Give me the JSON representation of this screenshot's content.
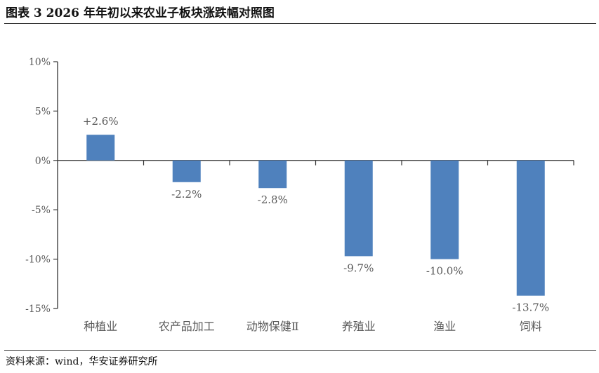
{
  "header": {
    "title": "图表 3 2026 年年初以来农业子板块涨跌幅对照图"
  },
  "footer": {
    "source": "资料来源：wind，华安证券研究所"
  },
  "colors": {
    "bar": "#4F81BD",
    "axis": "#333333",
    "text": "#595959"
  },
  "chart_data": {
    "type": "bar",
    "categories": [
      "种植业",
      "农产品加工",
      "动物保健Ⅱ",
      "养殖业",
      "渔业",
      "饲料"
    ],
    "values": [
      2.6,
      -2.2,
      -2.8,
      -9.7,
      -10.0,
      -13.7
    ],
    "data_labels": [
      "+2.6%",
      "-2.2%",
      "-2.8%",
      "-9.7%",
      "-10.0%",
      "-13.7%"
    ],
    "ylim": [
      -15,
      10
    ],
    "yticks": [
      10,
      5,
      0,
      -5,
      -10,
      -15
    ],
    "ytick_labels": [
      "10%",
      "5%",
      "0%",
      "-5%",
      "-10%",
      "-15%"
    ],
    "grid": false,
    "legend": "none"
  }
}
